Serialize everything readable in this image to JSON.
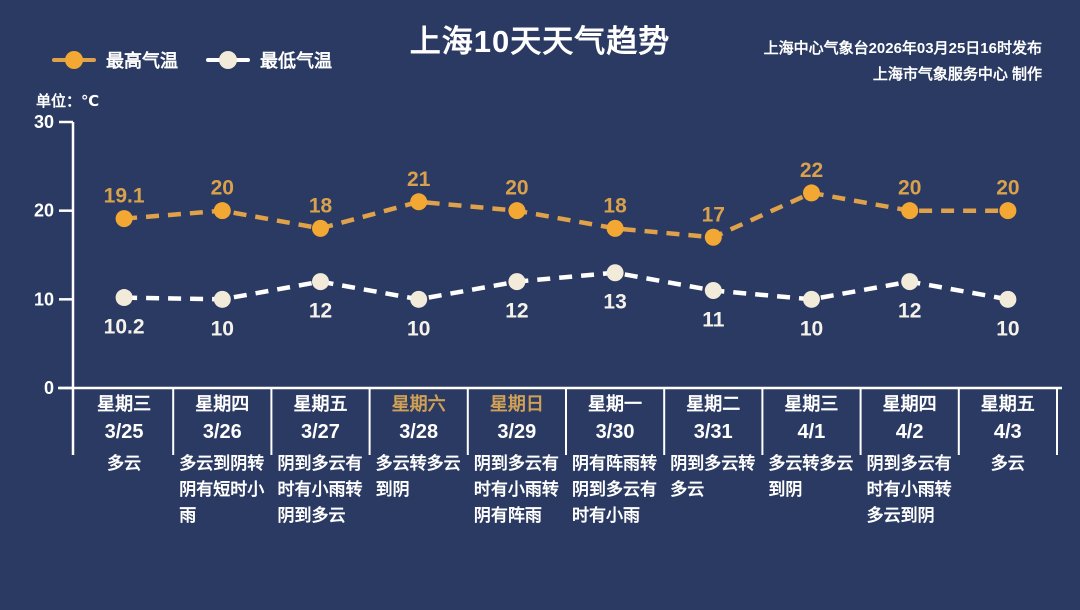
{
  "page": {
    "background": "#2b3a63"
  },
  "header": {
    "title": "上海10天天气趋势",
    "source_line1": "上海中心气象台2026年03月25日16时发布",
    "source_line2": "上海市气象服务中心  制作",
    "unit_label": "单位：℃"
  },
  "chart_data": {
    "type": "line",
    "title": "上海10天天气趋势",
    "ylabel": "单位：℃",
    "ylim": [
      0,
      30
    ],
    "yticks": [
      0,
      10,
      20,
      30
    ],
    "grid": false,
    "line_style": "dashed",
    "legend_position": "top-left",
    "categories": [
      "3/25",
      "3/26",
      "3/27",
      "3/28",
      "3/29",
      "3/30",
      "3/31",
      "4/1",
      "4/2",
      "4/3"
    ],
    "days": [
      {
        "weekday": "星期三",
        "date": "3/25",
        "weather": "多云",
        "weekend": false
      },
      {
        "weekday": "星期四",
        "date": "3/26",
        "weather": "多云到阴转阴有短时小雨",
        "weekend": false
      },
      {
        "weekday": "星期五",
        "date": "3/27",
        "weather": "阴到多云有时有小雨转阴到多云",
        "weekend": false
      },
      {
        "weekday": "星期六",
        "date": "3/28",
        "weather": "多云转多云到阴",
        "weekend": true
      },
      {
        "weekday": "星期日",
        "date": "3/29",
        "weather": "阴到多云有时有小雨转阴有阵雨",
        "weekend": true
      },
      {
        "weekday": "星期一",
        "date": "3/30",
        "weather": "阴有阵雨转阴到多云有时有小雨",
        "weekend": false
      },
      {
        "weekday": "星期二",
        "date": "3/31",
        "weather": "阴到多云转多云",
        "weekend": false
      },
      {
        "weekday": "星期三",
        "date": "4/1",
        "weather": "多云转多云到阴",
        "weekend": false
      },
      {
        "weekday": "星期四",
        "date": "4/2",
        "weather": "阴到多云有时有小雨转多云到阴",
        "weekend": false
      },
      {
        "weekday": "星期五",
        "date": "4/3",
        "weather": "多云",
        "weekend": false
      }
    ],
    "series": [
      {
        "name": "最高气温",
        "values": [
          19.1,
          20,
          18,
          21,
          20,
          18,
          17,
          22,
          20,
          20
        ],
        "marker_color": "#F2A832",
        "line_color": "#DFA149",
        "label_color": "#D9A14C"
      },
      {
        "name": "最低气温",
        "values": [
          10.2,
          10,
          12,
          10,
          12,
          13,
          11,
          10,
          12,
          10
        ],
        "marker_color": "#F2EBDA",
        "line_color": "#FFFFFF",
        "label_color": "#F5F2EA"
      }
    ],
    "colors": {
      "background": "#2b3a63",
      "axis": "#FFFFFF",
      "weekend_label": "#CFA055",
      "weekday_label": "#FFFFFF",
      "date_label": "#FFFFFF",
      "weather_label": "#FFFFFF"
    }
  }
}
